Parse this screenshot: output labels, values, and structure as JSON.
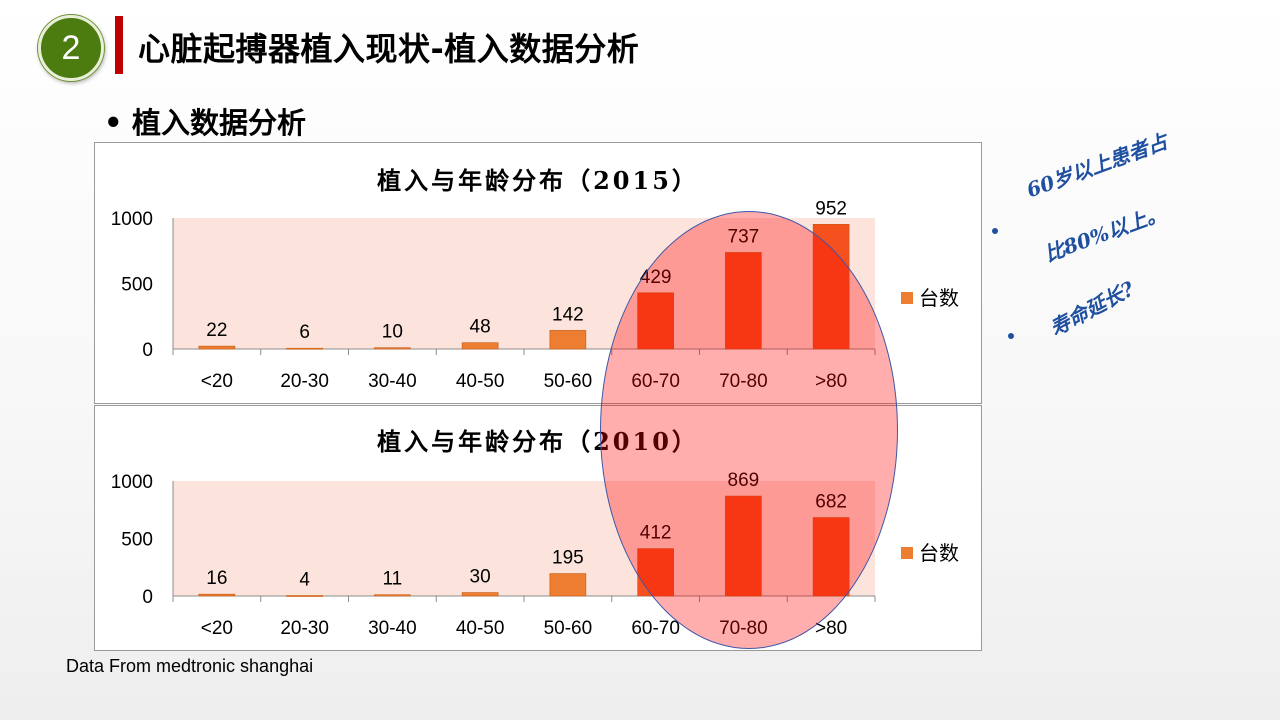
{
  "slide": {
    "number": "2",
    "title": "心脏起搏器植入现状-植入数据分析",
    "bullet": "植入数据分析",
    "source": "Data From medtronic shanghai"
  },
  "annotations": {
    "note1_line1": "60岁以上患者占",
    "note1_line2": "比80%以上。",
    "note2": "寿命延长?"
  },
  "colors": {
    "bar_normal": "#ed7d31",
    "bar_highlight": "#f4511e",
    "plot_bg": "#fce4dc",
    "overlay": "#ff0000"
  },
  "chart_data": [
    {
      "type": "bar",
      "title": "植入与年龄分布（2015）",
      "categories": [
        "<20",
        "20-30",
        "30-40",
        "40-50",
        "50-60",
        "60-70",
        "70-80",
        ">80"
      ],
      "series": [
        {
          "name": "台数",
          "values": [
            22,
            6,
            10,
            48,
            142,
            429,
            737,
            952
          ]
        }
      ],
      "yticks": [
        "0",
        "500",
        "1000"
      ],
      "ylim": [
        0,
        1000
      ],
      "legend": "right",
      "grid": false
    },
    {
      "type": "bar",
      "title": "植入与年龄分布（2010）",
      "categories": [
        "<20",
        "20-30",
        "30-40",
        "40-50",
        "50-60",
        "60-70",
        "70-80",
        ">80"
      ],
      "series": [
        {
          "name": "台数",
          "values": [
            16,
            4,
            11,
            30,
            195,
            412,
            869,
            682
          ]
        }
      ],
      "yticks": [
        "0",
        "500",
        "1000"
      ],
      "ylim": [
        0,
        1000
      ],
      "legend": "right",
      "grid": false
    }
  ]
}
